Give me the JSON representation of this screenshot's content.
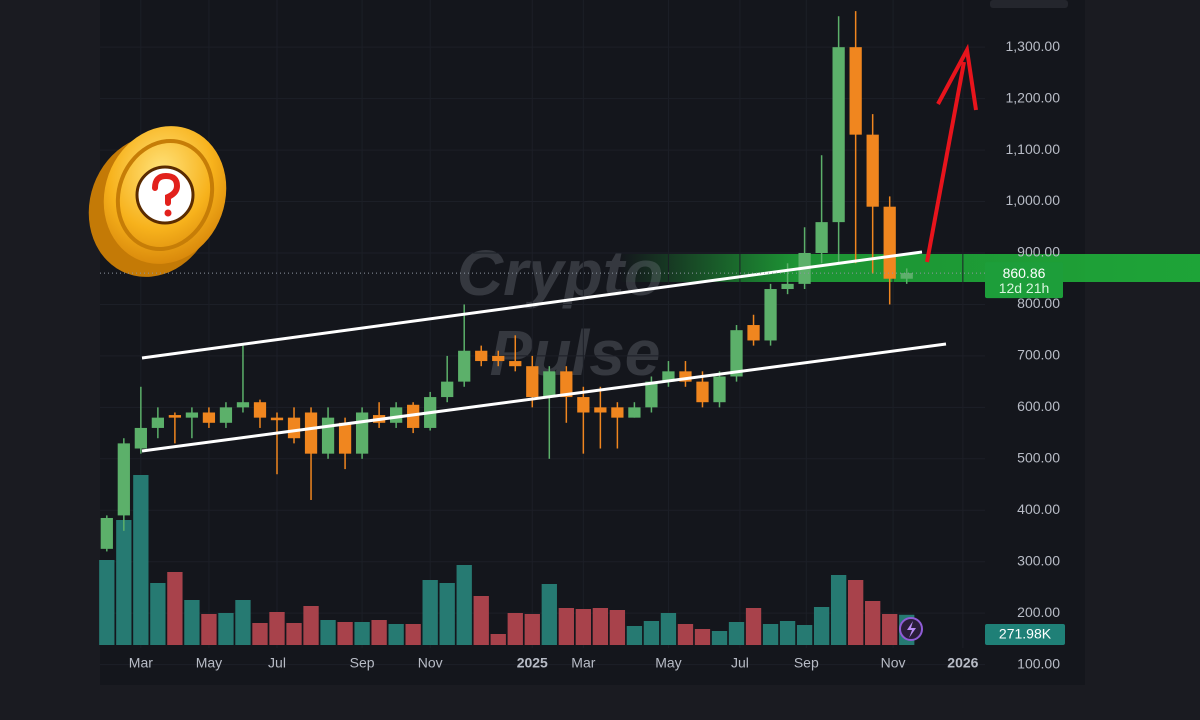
{
  "chart_data": {
    "type": "candlestick",
    "watermark": [
      "Crypto",
      "Pulse"
    ],
    "open": [
      325,
      390,
      520,
      560,
      585,
      580,
      590,
      570,
      600,
      610,
      580,
      580,
      590,
      510,
      570,
      510,
      585,
      570,
      605,
      560,
      620,
      650,
      710,
      700,
      690,
      680,
      620,
      670,
      620,
      600,
      600,
      580,
      600,
      650,
      670,
      650,
      610,
      660,
      760,
      730,
      830,
      840,
      900,
      960,
      1300,
      1130,
      990,
      850
    ],
    "high": [
      390,
      540,
      640,
      600,
      590,
      600,
      600,
      610,
      720,
      615,
      590,
      600,
      600,
      600,
      580,
      600,
      610,
      610,
      610,
      630,
      700,
      800,
      720,
      710,
      740,
      700,
      680,
      680,
      640,
      640,
      610,
      610,
      660,
      690,
      690,
      670,
      670,
      760,
      780,
      840,
      880,
      950,
      1090,
      1360,
      1370,
      1170,
      1010,
      870
    ],
    "low": [
      320,
      360,
      510,
      540,
      530,
      540,
      560,
      560,
      590,
      560,
      470,
      530,
      420,
      500,
      480,
      500,
      560,
      560,
      550,
      555,
      610,
      640,
      680,
      680,
      670,
      600,
      500,
      570,
      510,
      520,
      520,
      580,
      590,
      640,
      640,
      600,
      600,
      650,
      720,
      720,
      820,
      830,
      880,
      880,
      880,
      860,
      800,
      840
    ],
    "close": [
      385,
      530,
      560,
      580,
      580,
      590,
      570,
      600,
      610,
      580,
      575,
      540,
      510,
      580,
      510,
      590,
      570,
      600,
      560,
      620,
      650,
      710,
      690,
      690,
      680,
      620,
      670,
      620,
      590,
      590,
      580,
      600,
      650,
      670,
      650,
      610,
      660,
      750,
      730,
      830,
      840,
      900,
      960,
      1300,
      1130,
      990,
      850,
      861
    ],
    "volume": [
      765,
      1125,
      1530,
      558,
      657,
      405,
      279,
      288,
      405,
      198,
      297,
      198,
      351,
      225,
      207,
      207,
      225,
      189,
      189,
      585,
      558,
      720,
      441,
      99,
      288,
      279,
      549,
      333,
      324,
      333,
      315,
      171,
      216,
      288,
      189,
      144,
      126,
      207,
      333,
      189,
      216,
      180,
      342,
      630,
      585,
      396,
      279,
      271.98
    ],
    "last_volume_label": "271.98K",
    "up_color": "#5cb06a",
    "down_color": "#f0861f",
    "volume_up_color": "#267a72",
    "volume_down_color": "#a8424b",
    "last_price": 860.86,
    "countdown": "12d 21h",
    "xlim": [
      -0.4,
      51.6
    ],
    "xticks": [
      {
        "value": 2,
        "label": "Mar"
      },
      {
        "value": 6,
        "label": "May"
      },
      {
        "value": 10,
        "label": "Jul"
      },
      {
        "value": 15,
        "label": "Sep"
      },
      {
        "value": 19,
        "label": "Nov"
      },
      {
        "value": 25,
        "label": "2025"
      },
      {
        "value": 28,
        "label": "Mar"
      },
      {
        "value": 33,
        "label": "May"
      },
      {
        "value": 37.2,
        "label": "Jul"
      },
      {
        "value": 41.1,
        "label": "Sep"
      },
      {
        "value": 46.2,
        "label": "Nov"
      },
      {
        "value": 50.3,
        "label": "2026"
      }
    ],
    "ylim": [
      60.4,
      1391.7
    ],
    "yticks": [
      {
        "value": 100,
        "label": "100.00"
      },
      {
        "value": 200,
        "label": "200.00"
      },
      {
        "value": 300,
        "label": "300.00"
      },
      {
        "value": 400,
        "label": "400.00"
      },
      {
        "value": 500,
        "label": "500.00"
      },
      {
        "value": 600,
        "label": "600.00"
      },
      {
        "value": 700,
        "label": "700.00"
      },
      {
        "value": 800,
        "label": "800.00"
      },
      {
        "value": 900,
        "label": "900.00"
      },
      {
        "value": 1000,
        "label": "1,000.00"
      },
      {
        "value": 1100,
        "label": "1,100.00"
      },
      {
        "value": 1200,
        "label": "1,200.00"
      },
      {
        "value": 1300,
        "label": "1,300.00"
      }
    ]
  }
}
